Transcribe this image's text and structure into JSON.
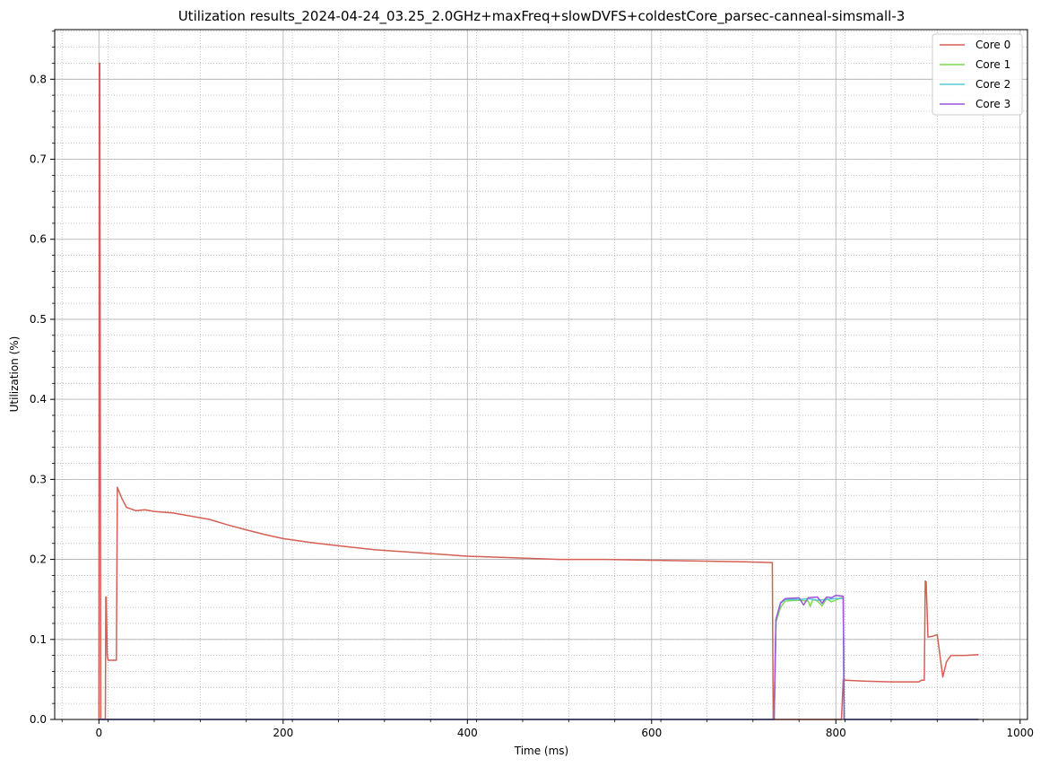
{
  "chart_data": {
    "type": "line",
    "title": "Utilization results_2024-04-24_03.25_2.0GHz+maxFreq+slowDVFS+coldestCore_parsec-canneal-simsmall-3",
    "xlabel": "Time (ms)",
    "ylabel": "Utilization (%)",
    "xlim": [
      -48,
      1008
    ],
    "ylim": [
      0,
      0.862
    ],
    "x_ticks": [
      0,
      200,
      400,
      600,
      800,
      1000
    ],
    "y_ticks": [
      0.0,
      0.1,
      0.2,
      0.3,
      0.4,
      0.5,
      0.6,
      0.7,
      0.8
    ],
    "x_tick_labels": [
      "0",
      "200",
      "400",
      "600",
      "800",
      "1000"
    ],
    "y_tick_labels": [
      "0.0",
      "0.1",
      "0.2",
      "0.3",
      "0.4",
      "0.5",
      "0.6",
      "0.7",
      "0.8"
    ],
    "grid": {
      "major": true,
      "minor": true
    },
    "legend_position": "top-right",
    "series": [
      {
        "name": "Core 0",
        "color": "#d65f55",
        "points": [
          [
            0,
            0.0
          ],
          [
            0.5,
            0.82
          ],
          [
            1,
            0.82
          ],
          [
            2,
            0.0
          ],
          [
            7,
            0.0
          ],
          [
            7.5,
            0.153
          ],
          [
            8,
            0.153
          ],
          [
            9,
            0.08
          ],
          [
            10,
            0.074
          ],
          [
            19,
            0.074
          ],
          [
            20,
            0.29
          ],
          [
            25,
            0.276
          ],
          [
            30,
            0.265
          ],
          [
            40,
            0.261
          ],
          [
            50,
            0.262
          ],
          [
            60,
            0.26
          ],
          [
            80,
            0.258
          ],
          [
            100,
            0.254
          ],
          [
            120,
            0.25
          ],
          [
            140,
            0.243
          ],
          [
            160,
            0.237
          ],
          [
            180,
            0.231
          ],
          [
            200,
            0.226
          ],
          [
            230,
            0.221
          ],
          [
            260,
            0.217
          ],
          [
            300,
            0.212
          ],
          [
            350,
            0.208
          ],
          [
            400,
            0.204
          ],
          [
            450,
            0.202
          ],
          [
            500,
            0.2
          ],
          [
            550,
            0.2
          ],
          [
            600,
            0.199
          ],
          [
            650,
            0.198
          ],
          [
            700,
            0.197
          ],
          [
            730,
            0.196
          ],
          [
            731,
            0.196
          ],
          [
            732,
            0.0
          ],
          [
            806,
            0.0
          ],
          [
            808,
            0.05
          ],
          [
            810,
            0.049
          ],
          [
            830,
            0.048
          ],
          [
            860,
            0.047
          ],
          [
            890,
            0.047
          ],
          [
            893,
            0.049
          ],
          [
            896,
            0.049
          ],
          [
            897,
            0.173
          ],
          [
            898,
            0.172
          ],
          [
            900,
            0.103
          ],
          [
            905,
            0.104
          ],
          [
            910,
            0.106
          ],
          [
            913,
            0.08
          ],
          [
            916,
            0.053
          ],
          [
            920,
            0.072
          ],
          [
            925,
            0.08
          ],
          [
            940,
            0.08
          ],
          [
            955,
            0.081
          ]
        ]
      },
      {
        "name": "Core 1",
        "color": "#7ed957",
        "points": [
          [
            0,
            0.0
          ],
          [
            730,
            0.0
          ],
          [
            733,
            0.0
          ],
          [
            735,
            0.122
          ],
          [
            740,
            0.14
          ],
          [
            745,
            0.148
          ],
          [
            760,
            0.149
          ],
          [
            770,
            0.148
          ],
          [
            772,
            0.141
          ],
          [
            775,
            0.15
          ],
          [
            780,
            0.148
          ],
          [
            785,
            0.142
          ],
          [
            790,
            0.151
          ],
          [
            795,
            0.147
          ],
          [
            800,
            0.149
          ],
          [
            805,
            0.152
          ],
          [
            808,
            0.152
          ],
          [
            809,
            0.0
          ],
          [
            955,
            0.0
          ]
        ]
      },
      {
        "name": "Core 2",
        "color": "#55c9d6",
        "points": [
          [
            0,
            0.0
          ],
          [
            730,
            0.0
          ],
          [
            733,
            0.0
          ],
          [
            735,
            0.125
          ],
          [
            740,
            0.145
          ],
          [
            745,
            0.15
          ],
          [
            760,
            0.15
          ],
          [
            770,
            0.151
          ],
          [
            780,
            0.149
          ],
          [
            790,
            0.15
          ],
          [
            800,
            0.151
          ],
          [
            808,
            0.151
          ],
          [
            809,
            0.0
          ],
          [
            955,
            0.0
          ]
        ]
      },
      {
        "name": "Core 3",
        "color": "#9955d6",
        "points": [
          [
            0,
            0.0
          ],
          [
            730,
            0.0
          ],
          [
            733,
            0.0
          ],
          [
            735,
            0.125
          ],
          [
            740,
            0.146
          ],
          [
            745,
            0.151
          ],
          [
            760,
            0.152
          ],
          [
            765,
            0.143
          ],
          [
            770,
            0.152
          ],
          [
            780,
            0.153
          ],
          [
            785,
            0.145
          ],
          [
            790,
            0.153
          ],
          [
            795,
            0.152
          ],
          [
            800,
            0.155
          ],
          [
            808,
            0.154
          ],
          [
            809,
            0.0
          ],
          [
            955,
            0.0
          ]
        ]
      }
    ]
  }
}
